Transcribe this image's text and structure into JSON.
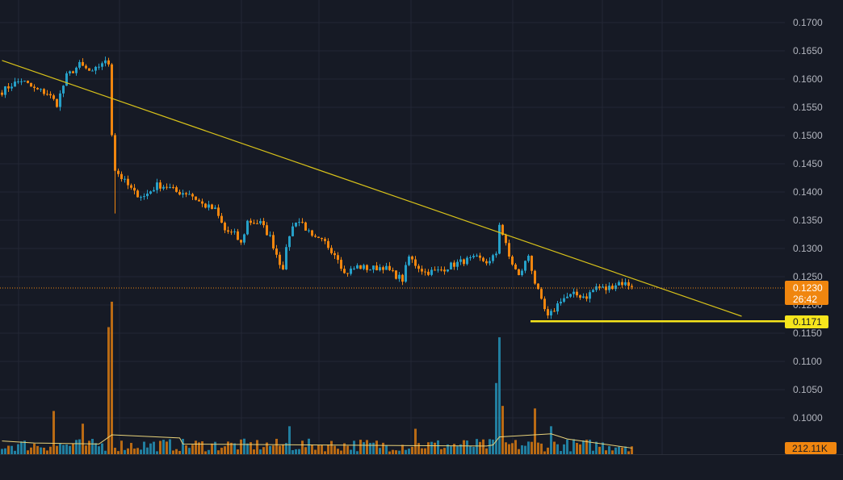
{
  "chart_data": {
    "type": "candlestick",
    "title": "",
    "xlabel": "",
    "ylabel": "",
    "ylim": [
      0.0935,
      0.1725
    ],
    "grid": true,
    "y_ticks": [
      "0.1700",
      "0.1650",
      "0.1600",
      "0.1550",
      "0.1500",
      "0.1450",
      "0.1400",
      "0.1350",
      "0.1300",
      "0.1250",
      "0.1200",
      "0.1150",
      "0.1100",
      "0.1050",
      "0.1000"
    ],
    "price_tag": {
      "value": "0.1230",
      "countdown": "26:42",
      "price": 0.123
    },
    "support_tag": {
      "value": "0.1171",
      "price": 0.1171
    },
    "volume_tag": {
      "value": "212.11K"
    },
    "trendline": {
      "from": [
        0,
        0.1633
      ],
      "to": [
        229,
        0.118
      ]
    },
    "support_line": {
      "from": [
        164,
        0.1171
      ],
      "to": [
        243,
        0.1171
      ]
    },
    "anchors": [
      [
        0,
        0.1578
      ],
      [
        3,
        0.159
      ],
      [
        6,
        0.1598
      ],
      [
        10,
        0.1582
      ],
      [
        14,
        0.1575
      ],
      [
        17,
        0.1556
      ],
      [
        20,
        0.1605
      ],
      [
        24,
        0.1625
      ],
      [
        28,
        0.161
      ],
      [
        31,
        0.163
      ],
      [
        33,
        0.1628
      ],
      [
        34,
        0.1505
      ],
      [
        35,
        0.144
      ],
      [
        38,
        0.1418
      ],
      [
        41,
        0.1398
      ],
      [
        44,
        0.1392
      ],
      [
        48,
        0.1412
      ],
      [
        51,
        0.141
      ],
      [
        54,
        0.14
      ],
      [
        58,
        0.1398
      ],
      [
        62,
        0.1378
      ],
      [
        66,
        0.1368
      ],
      [
        69,
        0.1332
      ],
      [
        72,
        0.1325
      ],
      [
        74,
        0.1308
      ],
      [
        76,
        0.1348
      ],
      [
        80,
        0.1345
      ],
      [
        83,
        0.132
      ],
      [
        86,
        0.1275
      ],
      [
        87,
        0.1268
      ],
      [
        89,
        0.1325
      ],
      [
        91,
        0.135
      ],
      [
        93,
        0.1345
      ],
      [
        96,
        0.1318
      ],
      [
        100,
        0.131
      ],
      [
        104,
        0.1285
      ],
      [
        106,
        0.1255
      ],
      [
        110,
        0.1268
      ],
      [
        114,
        0.1264
      ],
      [
        118,
        0.1268
      ],
      [
        122,
        0.1252
      ],
      [
        124,
        0.1245
      ],
      [
        126,
        0.1285
      ],
      [
        128,
        0.1272
      ],
      [
        131,
        0.1258
      ],
      [
        135,
        0.126
      ],
      [
        139,
        0.127
      ],
      [
        143,
        0.1278
      ],
      [
        147,
        0.1282
      ],
      [
        151,
        0.1275
      ],
      [
        153,
        0.1292
      ],
      [
        154,
        0.1345
      ],
      [
        155,
        0.1325
      ],
      [
        157,
        0.1285
      ],
      [
        160,
        0.125
      ],
      [
        163,
        0.1288
      ],
      [
        165,
        0.124
      ],
      [
        167,
        0.1205
      ],
      [
        169,
        0.1177
      ],
      [
        171,
        0.1192
      ],
      [
        173,
        0.121
      ],
      [
        177,
        0.1218
      ],
      [
        181,
        0.1215
      ],
      [
        184,
        0.1232
      ],
      [
        187,
        0.1228
      ],
      [
        191,
        0.124
      ],
      [
        195,
        0.1235
      ]
    ],
    "volume_spikes": [
      [
        33,
        2.5
      ],
      [
        34,
        3.0
      ],
      [
        153,
        1.4
      ],
      [
        154,
        2.3
      ],
      [
        155,
        0.95
      ],
      [
        165,
        0.9
      ],
      [
        16,
        0.85
      ],
      [
        25,
        0.6
      ],
      [
        89,
        0.55
      ],
      [
        128,
        0.5
      ],
      [
        170,
        0.55
      ]
    ],
    "volume_base": 0.18,
    "volume_ma": [
      [
        0,
        0.26
      ],
      [
        10,
        0.22
      ],
      [
        30,
        0.2
      ],
      [
        34,
        0.38
      ],
      [
        55,
        0.32
      ],
      [
        56,
        0.2
      ],
      [
        100,
        0.18
      ],
      [
        150,
        0.16
      ],
      [
        152,
        0.18
      ],
      [
        154,
        0.34
      ],
      [
        170,
        0.4
      ],
      [
        175,
        0.3
      ],
      [
        195,
        0.12
      ]
    ]
  },
  "style": {
    "background": "#161a25",
    "grid": "#232735",
    "up": "#26a0c8",
    "down": "#f0860f",
    "trendline": "#d8c21a",
    "support": "#f6e51c",
    "price_line": "#f0860f",
    "volume_ma": "#e8d27a",
    "axis_text": "#b2b5be"
  }
}
